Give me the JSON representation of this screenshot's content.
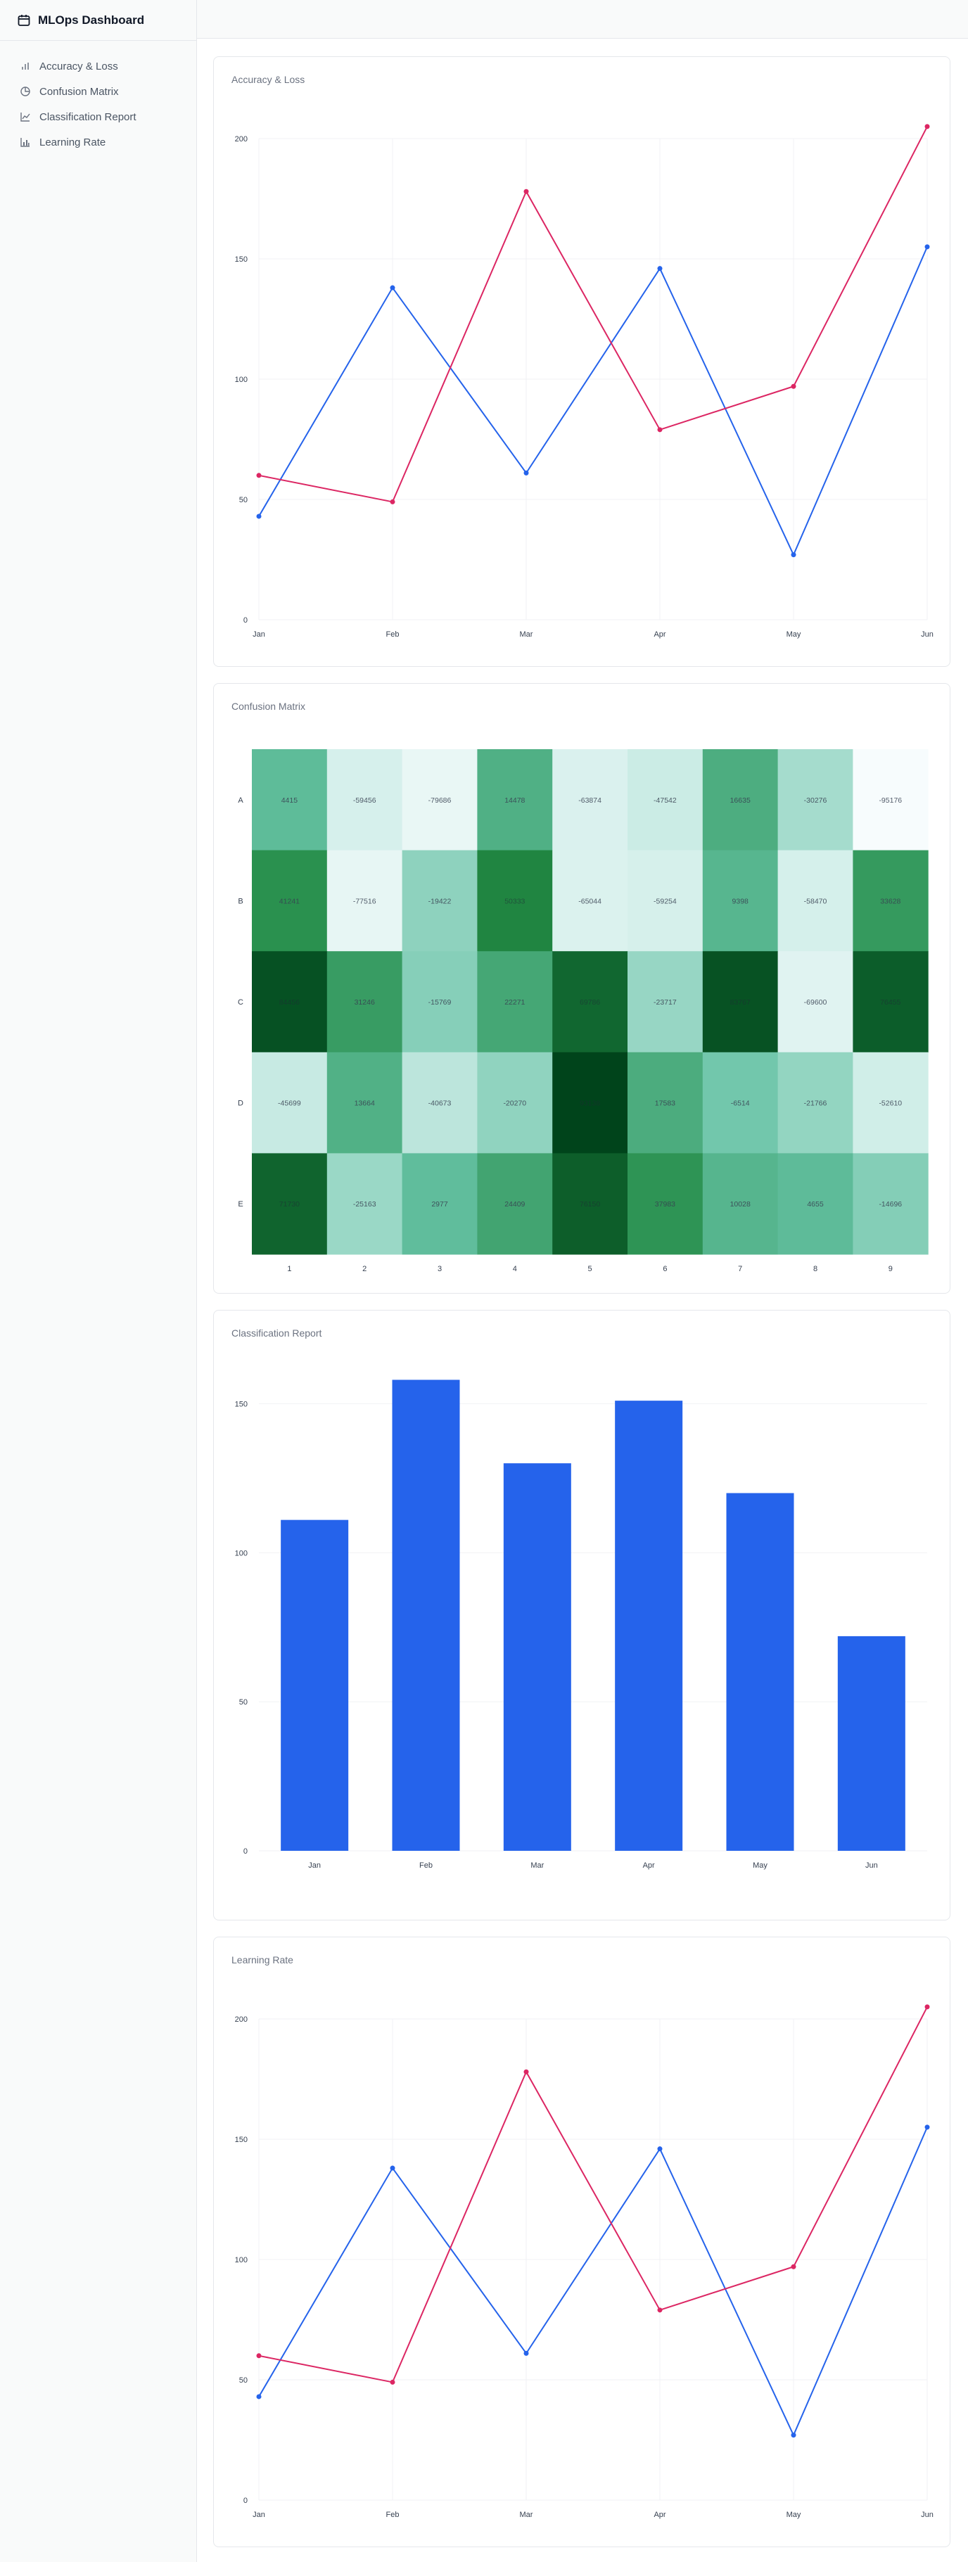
{
  "app": {
    "title": "MLOps Dashboard",
    "logo_icon": "calendar-icon"
  },
  "sidebar": {
    "items": [
      {
        "label": "Accuracy & Loss",
        "icon": "bar-chart-icon"
      },
      {
        "label": "Confusion Matrix",
        "icon": "pie-chart-icon"
      },
      {
        "label": "Classification Report",
        "icon": "line-chart-icon"
      },
      {
        "label": "Learning Rate",
        "icon": "column-chart-icon"
      }
    ]
  },
  "cards": [
    {
      "title": "Accuracy & Loss"
    },
    {
      "title": "Confusion Matrix"
    },
    {
      "title": "Classification Report"
    },
    {
      "title": "Learning Rate"
    }
  ],
  "chart_data": [
    {
      "type": "line",
      "title": "Accuracy & Loss",
      "categories": [
        "Jan",
        "Feb",
        "Mar",
        "Apr",
        "May",
        "Jun"
      ],
      "ylim": [
        0,
        200
      ],
      "yticks": [
        0,
        50,
        100,
        150,
        200
      ],
      "grid": true,
      "series": [
        {
          "color": "#2563eb",
          "values": [
            43,
            138,
            61,
            146,
            27,
            155
          ]
        },
        {
          "color": "#dc2663",
          "values": [
            60,
            49,
            178,
            79,
            97,
            205
          ]
        }
      ]
    },
    {
      "type": "heatmap",
      "title": "Confusion Matrix",
      "rows": [
        "A",
        "B",
        "C",
        "D",
        "E"
      ],
      "columns": [
        "1",
        "2",
        "3",
        "4",
        "5",
        "6",
        "7",
        "8",
        "9"
      ],
      "values": [
        [
          4415,
          -59456,
          -79686,
          14478,
          -63874,
          -47542,
          16635,
          -30276,
          -95176
        ],
        [
          41241,
          -77516,
          -19422,
          50333,
          -65044,
          -59254,
          9398,
          -58470,
          33628
        ],
        [
          84456,
          31246,
          -15769,
          22271,
          69786,
          -23717,
          83767,
          -69600,
          76455
        ],
        [
          -45699,
          13664,
          -40673,
          -20270,
          93138,
          17583,
          -6514,
          -21766,
          -52610
        ],
        [
          71730,
          -25163,
          2977,
          24409,
          76150,
          37983,
          10028,
          4655,
          -14696
        ]
      ],
      "color_scale": [
        "#f7fcfd",
        "#ccece6",
        "#66c2a4",
        "#238b45",
        "#00441b"
      ]
    },
    {
      "type": "bar",
      "title": "Classification Report",
      "categories": [
        "Jan",
        "Feb",
        "Mar",
        "Apr",
        "May",
        "Jun"
      ],
      "values": [
        111,
        158,
        130,
        151,
        120,
        72
      ],
      "ylim": [
        0,
        160
      ],
      "yticks": [
        0,
        50,
        100,
        150
      ],
      "grid": true,
      "color": "#2563eb"
    },
    {
      "type": "line",
      "title": "Learning Rate",
      "categories": [
        "Jan",
        "Feb",
        "Mar",
        "Apr",
        "May",
        "Jun"
      ],
      "ylim": [
        0,
        200
      ],
      "yticks": [
        0,
        50,
        100,
        150,
        200
      ],
      "grid": true,
      "series": [
        {
          "color": "#2563eb",
          "values": [
            43,
            138,
            61,
            146,
            27,
            155
          ]
        },
        {
          "color": "#dc2663",
          "values": [
            60,
            49,
            178,
            79,
            97,
            205
          ]
        }
      ]
    }
  ]
}
